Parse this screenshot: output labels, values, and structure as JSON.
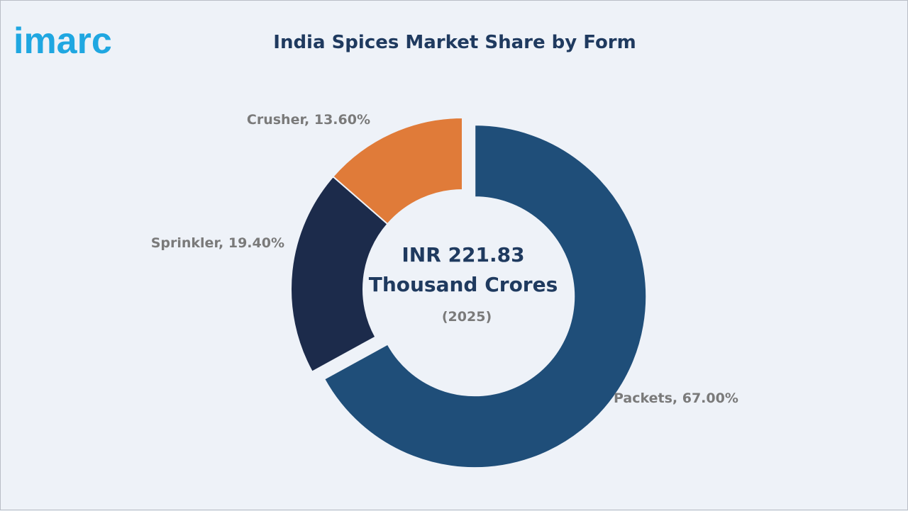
{
  "brand": {
    "name": "imarc",
    "color": "#1fa7e1"
  },
  "chart_data": {
    "type": "pie",
    "style": "donut",
    "title": "India Spices Market Share by Form",
    "center": {
      "value_line1": "INR 221.83",
      "value_line2": "Thousand Crores",
      "year": "(2025)"
    },
    "slices": [
      {
        "name": "Packets",
        "value": 67.0,
        "label": "Packets, 67.00%",
        "color": "#1f4e79",
        "exploded": true
      },
      {
        "name": "Sprinkler",
        "value": 19.4,
        "label": "Sprinkler, 19.40%",
        "color": "#1c2b4b",
        "exploded": false
      },
      {
        "name": "Crusher",
        "value": 13.6,
        "label": "Crusher, 13.60%",
        "color": "#e07b39",
        "exploded": false
      }
    ]
  }
}
